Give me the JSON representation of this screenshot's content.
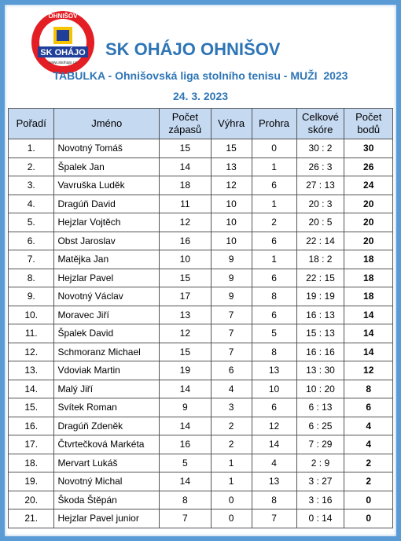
{
  "logo": {
    "top": "OHNIŠOV",
    "name": "SK OHÁJO",
    "url": "www.skohajo.cz"
  },
  "header": {
    "title": "SK OHÁJO OHNIŠOV",
    "subtitle": "TABULKA - Ohnišovská liga stolního tenisu - MUŽI  2023",
    "date": "24. 3. 2023"
  },
  "table": {
    "columns": [
      "Pořadí",
      "Jméno",
      "Počet zápasů",
      "Výhra",
      "Prohra",
      "Celkové skóre",
      "Počet bodů"
    ],
    "rows": [
      [
        "1.",
        "Novotný Tomáš",
        15,
        15,
        0,
        "30 : 2",
        30
      ],
      [
        "2.",
        "Špalek Jan",
        14,
        13,
        1,
        "26 : 3",
        26
      ],
      [
        "3.",
        "Vavruška Luděk",
        18,
        12,
        6,
        "27 : 13",
        24
      ],
      [
        "4.",
        "Dragúň David",
        11,
        10,
        1,
        "20 : 3",
        20
      ],
      [
        "5.",
        "Hejzlar Vojtěch",
        12,
        10,
        2,
        "20 : 5",
        20
      ],
      [
        "6.",
        "Obst Jaroslav",
        16,
        10,
        6,
        "22 : 14",
        20
      ],
      [
        "7.",
        "Matějka Jan",
        10,
        9,
        1,
        "18 : 2",
        18
      ],
      [
        "8.",
        "Hejzlar Pavel",
        15,
        9,
        6,
        "22 : 15",
        18
      ],
      [
        "9.",
        "Novotný Václav",
        17,
        9,
        8,
        "19 : 19",
        18
      ],
      [
        "10.",
        "Moravec Jiří",
        13,
        7,
        6,
        "16 : 13",
        14
      ],
      [
        "11.",
        "Špalek David",
        12,
        7,
        5,
        "15 : 13",
        14
      ],
      [
        "12.",
        "Schmoranz Michael",
        15,
        7,
        8,
        "16 : 16",
        14
      ],
      [
        "13.",
        "Vdoviak Martin",
        19,
        6,
        13,
        "13 : 30",
        12
      ],
      [
        "14.",
        "Malý Jiří",
        14,
        4,
        10,
        "10 : 20",
        8
      ],
      [
        "15.",
        "Svítek Roman",
        9,
        3,
        6,
        "6 : 13",
        6
      ],
      [
        "16.",
        "Dragúň Zdeněk",
        14,
        2,
        12,
        "6 : 25",
        4
      ],
      [
        "17.",
        "Čtvrtečková Markéta",
        16,
        2,
        14,
        "7 : 29",
        4
      ],
      [
        "18.",
        "Mervart Lukáš",
        5,
        1,
        4,
        "2 : 9",
        2
      ],
      [
        "19.",
        "Novotný Michal",
        14,
        1,
        13,
        "3 : 27",
        2
      ],
      [
        "20.",
        "Škoda Štěpán",
        8,
        0,
        8,
        "3 : 16",
        0
      ],
      [
        "21.",
        "Hejzlar Pavel junior",
        7,
        0,
        7,
        "0 : 14",
        0
      ]
    ]
  }
}
